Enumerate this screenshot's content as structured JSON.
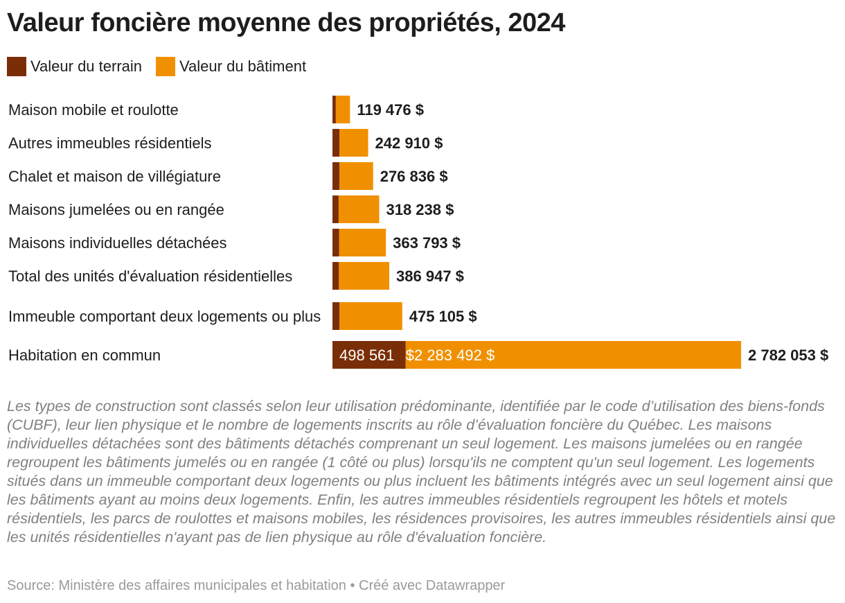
{
  "title": "Valeur foncière moyenne des propriétés, 2024",
  "legend": [
    {
      "label": "Valeur du terrain",
      "color": "#7a2e07"
    },
    {
      "label": "Valeur du bâtiment",
      "color": "#f09000"
    }
  ],
  "chart_data": {
    "type": "bar",
    "orientation": "horizontal",
    "stacked": true,
    "title": "Valeur foncière moyenne des propriétés, 2024",
    "categories": [
      "Maison mobile et roulotte",
      "Autres immeubles résidentiels",
      "Chalet et maison de villégiature",
      "Maisons jumelées ou en rangée",
      "Maisons individuelles détachées",
      "Total des unités d'évaluation résidentielles",
      "Immeuble comportant deux logements ou plus",
      "Habitation en commun"
    ],
    "series": [
      {
        "name": "Valeur du terrain",
        "color": "#7a2e07",
        "values": [
          23000,
          48000,
          48000,
          42000,
          46000,
          44000,
          48000,
          498561
        ]
      },
      {
        "name": "Valeur du bâtiment",
        "color": "#f09000",
        "values": [
          96476,
          194910,
          228836,
          276238,
          317793,
          342947,
          427105,
          2283492
        ]
      }
    ],
    "totals": [
      119476,
      242910,
      276836,
      318238,
      363793,
      386947,
      475105,
      2782053
    ],
    "total_labels": [
      "119 476 $",
      "242 910 $",
      "276 836 $",
      "318 238 $",
      "363 793 $",
      "386 947 $",
      "475 105 $",
      "2 782 053 $"
    ],
    "inner_labels": [
      {
        "category": "Habitation en commun",
        "series": "Valeur du terrain",
        "text": "498 561"
      },
      {
        "category": "Habitation en commun",
        "series": "Valeur du bâtiment",
        "text": "$2 283 492 $"
      }
    ],
    "xlim": [
      0,
      2782053
    ],
    "grid": false,
    "legend_position": "top-left"
  },
  "notes": "Les types de construction sont classés selon leur utilisation prédominante, identifiée par le code d’utilisation des biens-fonds (CUBF), leur lien physique et le nombre de logements inscrits au rôle d’évaluation foncière du Québec. Les maisons individuelles détachées sont des bâtiments détachés comprenant un seul logement. Les maisons jumelées ou en rangée regroupent les bâtiments jumelés ou en rangée (1 côté ou plus) lorsqu'ils ne comptent qu'un seul logement. Les logements situés dans un immeuble comportant deux logements ou plus incluent les bâtiments intégrés avec un seul logement ainsi que les bâtiments ayant au moins deux logements. Enfin, les autres immeubles résidentiels regroupent les hôtels et motels résidentiels, les parcs de roulottes et maisons mobiles, les résidences provisoires, les autres immeubles résidentiels ainsi que les unités résidentielles n'ayant pas de lien physique au rôle d'évaluation foncière.",
  "source": "Source: Ministère des affaires municipales et habitation • Créé avec Datawrapper"
}
